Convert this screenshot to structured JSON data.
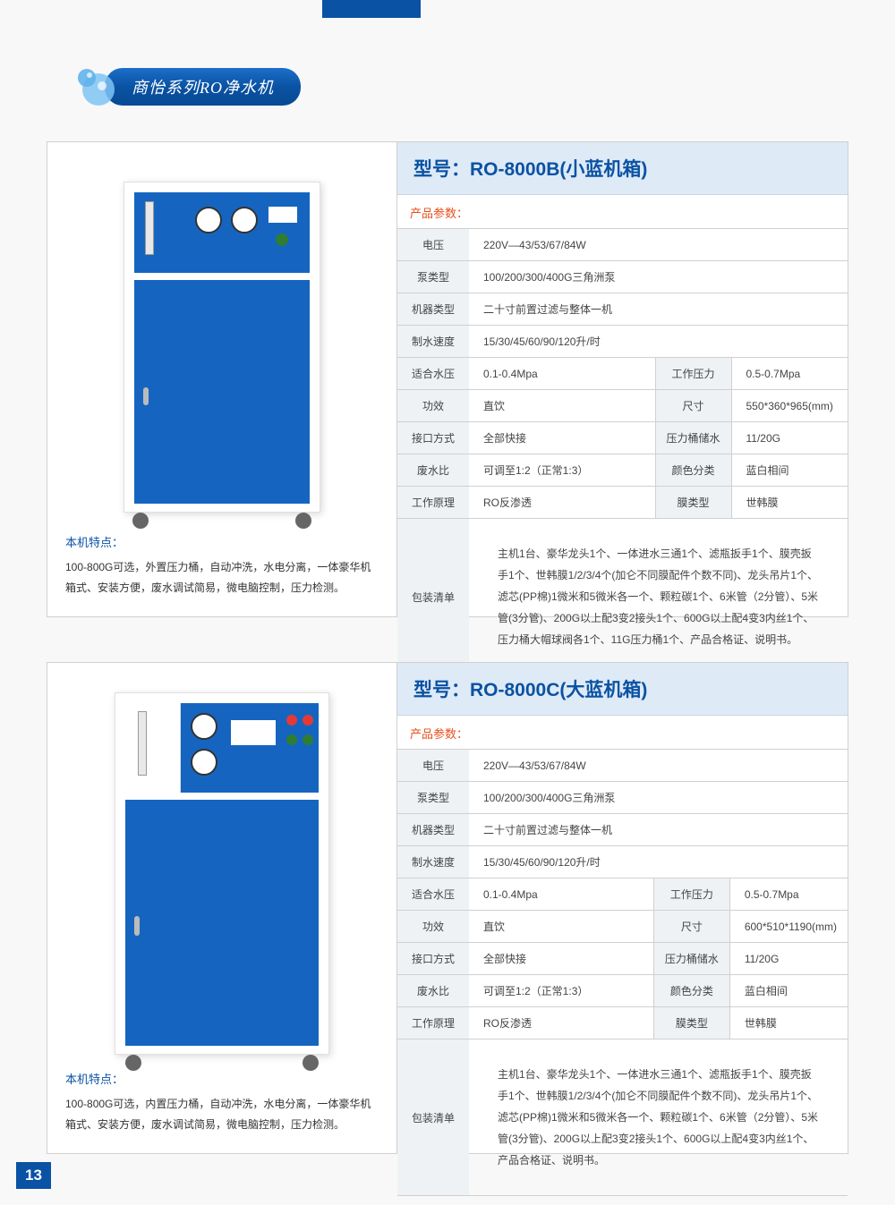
{
  "colors": {
    "brand": "#0a52a3",
    "accent": "#e8501d",
    "header_bg": "#deeaf6",
    "label_bg": "#eef2f5",
    "border": "#d0d0d0",
    "machine_blue": "#1565c0"
  },
  "header": {
    "title": "商怡系列RO净水机"
  },
  "page_number": "13",
  "products": [
    {
      "model_prefix": "型号：",
      "model": "RO-8000B(小蓝机箱)",
      "params_label": "产品参数：",
      "rows": [
        {
          "type": "full",
          "label": "电压",
          "value": "220V—43/53/67/84W"
        },
        {
          "type": "full",
          "label": "泵类型",
          "value": "100/200/300/400G三角洲泵"
        },
        {
          "type": "full",
          "label": "机器类型",
          "value": "二十寸前置过滤与整体一机"
        },
        {
          "type": "full",
          "label": "制水速度",
          "value": "15/30/45/60/90/120升/时"
        },
        {
          "type": "pair",
          "label": "适合水压",
          "value": "0.1-0.4Mpa",
          "label2": "工作压力",
          "value2": "0.5-0.7Mpa"
        },
        {
          "type": "pair",
          "label": "功效",
          "value": "直饮",
          "label2": "尺寸",
          "value2": "550*360*965(mm)"
        },
        {
          "type": "pair",
          "label": "接口方式",
          "value": "全部快接",
          "label2": "压力桶储水",
          "value2": "11/20G"
        },
        {
          "type": "pair",
          "label": "废水比",
          "value": "可调至1:2（正常1:3）",
          "label2": "颜色分类",
          "value2": "蓝白相间"
        },
        {
          "type": "pair",
          "label": "工作原理",
          "value": "RO反渗透",
          "label2": "膜类型",
          "value2": "世韩膜"
        }
      ],
      "packing_label": "包装清单",
      "packing_text": "主机1台、豪华龙头1个、一体进水三通1个、滤瓶扳手1个、膜壳扳手1个、世韩膜1/2/3/4个(加仑不同膜配件个数不同)、龙头吊片1个、滤芯(PP棉)1微米和5微米各一个、颗粒碳1个、6米管（2分管）、5米管(3分管)、200G以上配3变2接头1个、600G以上配4变3内丝1个、压力桶大帽球阀各1个、11G压力桶1个、产品合格证、说明书。",
      "features_label": "本机特点：",
      "features_text": "100-800G可选，外置压力桶，自动冲洗，水电分离，一体豪华机箱式、安装方便，废水调试简易，微电脑控制，压力检测。"
    },
    {
      "model_prefix": "型号：",
      "model": "RO-8000C(大蓝机箱)",
      "params_label": "产品参数：",
      "rows": [
        {
          "type": "full",
          "label": "电压",
          "value": "220V—43/53/67/84W"
        },
        {
          "type": "full",
          "label": "泵类型",
          "value": "100/200/300/400G三角洲泵"
        },
        {
          "type": "full",
          "label": "机器类型",
          "value": "二十寸前置过滤与整体一机"
        },
        {
          "type": "full",
          "label": "制水速度",
          "value": "15/30/45/60/90/120升/时"
        },
        {
          "type": "pair",
          "label": "适合水压",
          "value": "0.1-0.4Mpa",
          "label2": "工作压力",
          "value2": "0.5-0.7Mpa"
        },
        {
          "type": "pair",
          "label": "功效",
          "value": "直饮",
          "label2": "尺寸",
          "value2": "600*510*1190(mm)"
        },
        {
          "type": "pair",
          "label": "接口方式",
          "value": "全部快接",
          "label2": "压力桶储水",
          "value2": "11/20G"
        },
        {
          "type": "pair",
          "label": "废水比",
          "value": "可调至1:2（正常1:3）",
          "label2": "颜色分类",
          "value2": "蓝白相间"
        },
        {
          "type": "pair",
          "label": "工作原理",
          "value": "RO反渗透",
          "label2": "膜类型",
          "value2": "世韩膜"
        }
      ],
      "packing_label": "包装清单",
      "packing_text": "主机1台、豪华龙头1个、一体进水三通1个、滤瓶扳手1个、膜壳扳手1个、世韩膜1/2/3/4个(加仑不同膜配件个数不同)、龙头吊片1个、滤芯(PP棉)1微米和5微米各一个、颗粒碳1个、6米管（2分管）、5米管(3分管)、200G以上配3变2接头1个、600G以上配4变3内丝1个、产品合格证、说明书。",
      "features_label": "本机特点：",
      "features_text": "100-800G可选，内置压力桶，自动冲洗，水电分离，一体豪华机箱式、安装方便，废水调试简易，微电脑控制，压力检测。"
    }
  ]
}
